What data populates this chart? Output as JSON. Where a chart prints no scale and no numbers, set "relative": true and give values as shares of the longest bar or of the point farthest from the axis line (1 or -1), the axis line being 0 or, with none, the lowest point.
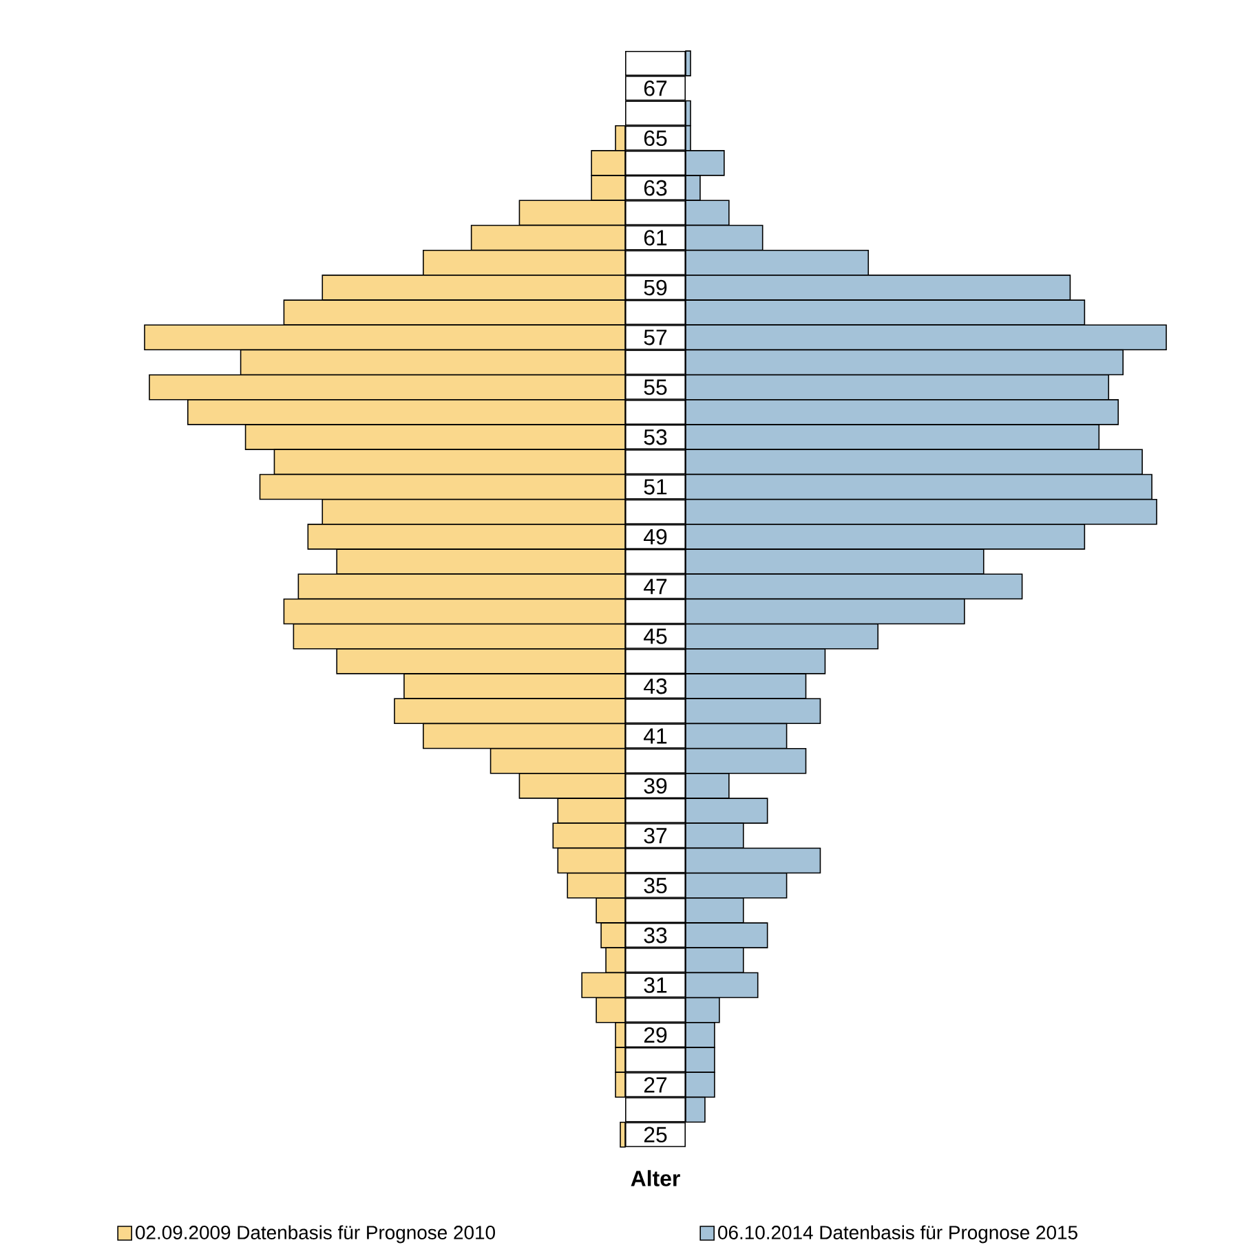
{
  "chart_data": [
    {
      "type": "bar",
      "orientation": "horizontal",
      "relative": true,
      "legend": "bottom",
      "tick_labels": false,
      "categories": [
        null,
        "67",
        null,
        "65",
        null,
        "63",
        null,
        "61",
        null,
        "59",
        null,
        "57",
        null,
        "55",
        null,
        "53",
        null,
        "51",
        null,
        "49",
        null,
        "47",
        null,
        "45",
        null,
        "43",
        null,
        "41",
        null,
        "39",
        null,
        "37",
        null,
        "35",
        null,
        "33",
        null,
        "31",
        null,
        "29",
        null,
        "27",
        null,
        "25"
      ],
      "series": [
        {
          "name": "02.09.2009 Datenbasis für Prognose 2010",
          "color": "#fad88c",
          "values": [
            0,
            0,
            0,
            -0.02,
            -0.07,
            -0.07,
            -0.22,
            -0.32,
            -0.42,
            -0.63,
            -0.71,
            -1.0,
            -0.8,
            -0.99,
            -0.91,
            -0.79,
            -0.73,
            -0.76,
            -0.63,
            -0.66,
            -0.6,
            -0.68,
            -0.71,
            -0.69,
            -0.6,
            -0.46,
            -0.48,
            -0.42,
            -0.28,
            -0.22,
            -0.14,
            -0.15,
            -0.14,
            -0.12,
            -0.06,
            -0.05,
            -0.04,
            -0.09,
            -0.06,
            -0.02,
            -0.02,
            -0.02,
            0,
            -0.01
          ]
        }
      ]
    },
    {
      "type": "bar",
      "orientation": "horizontal",
      "relative": true,
      "legend": "bottom",
      "annotations": [
        "Alter"
      ],
      "categories": [
        null,
        "67",
        null,
        "65",
        null,
        "63",
        null,
        "61",
        null,
        "59",
        null,
        "57",
        null,
        "55",
        null,
        "53",
        null,
        "51",
        null,
        "49",
        null,
        "47",
        null,
        "45",
        null,
        "43",
        null,
        "41",
        null,
        "39",
        null,
        "37",
        null,
        "35",
        null,
        "33",
        null,
        "31",
        null,
        "29",
        null,
        "27",
        null,
        "25"
      ],
      "series": [
        {
          "name": "06.10.2014 Datenbasis für Prognose 2015",
          "color": "#a4c2d8",
          "values": [
            0.01,
            0,
            0.01,
            0.01,
            0.08,
            0.03,
            0.09,
            0.16,
            0.38,
            0.8,
            0.83,
            1.0,
            0.91,
            0.88,
            0.9,
            0.86,
            0.95,
            0.97,
            0.98,
            0.83,
            0.62,
            0.7,
            0.58,
            0.4,
            0.29,
            0.25,
            0.28,
            0.21,
            0.25,
            0.09,
            0.17,
            0.12,
            0.28,
            0.21,
            0.12,
            0.17,
            0.12,
            0.15,
            0.07,
            0.06,
            0.06,
            0.06,
            0.04,
            0
          ]
        }
      ]
    }
  ]
}
